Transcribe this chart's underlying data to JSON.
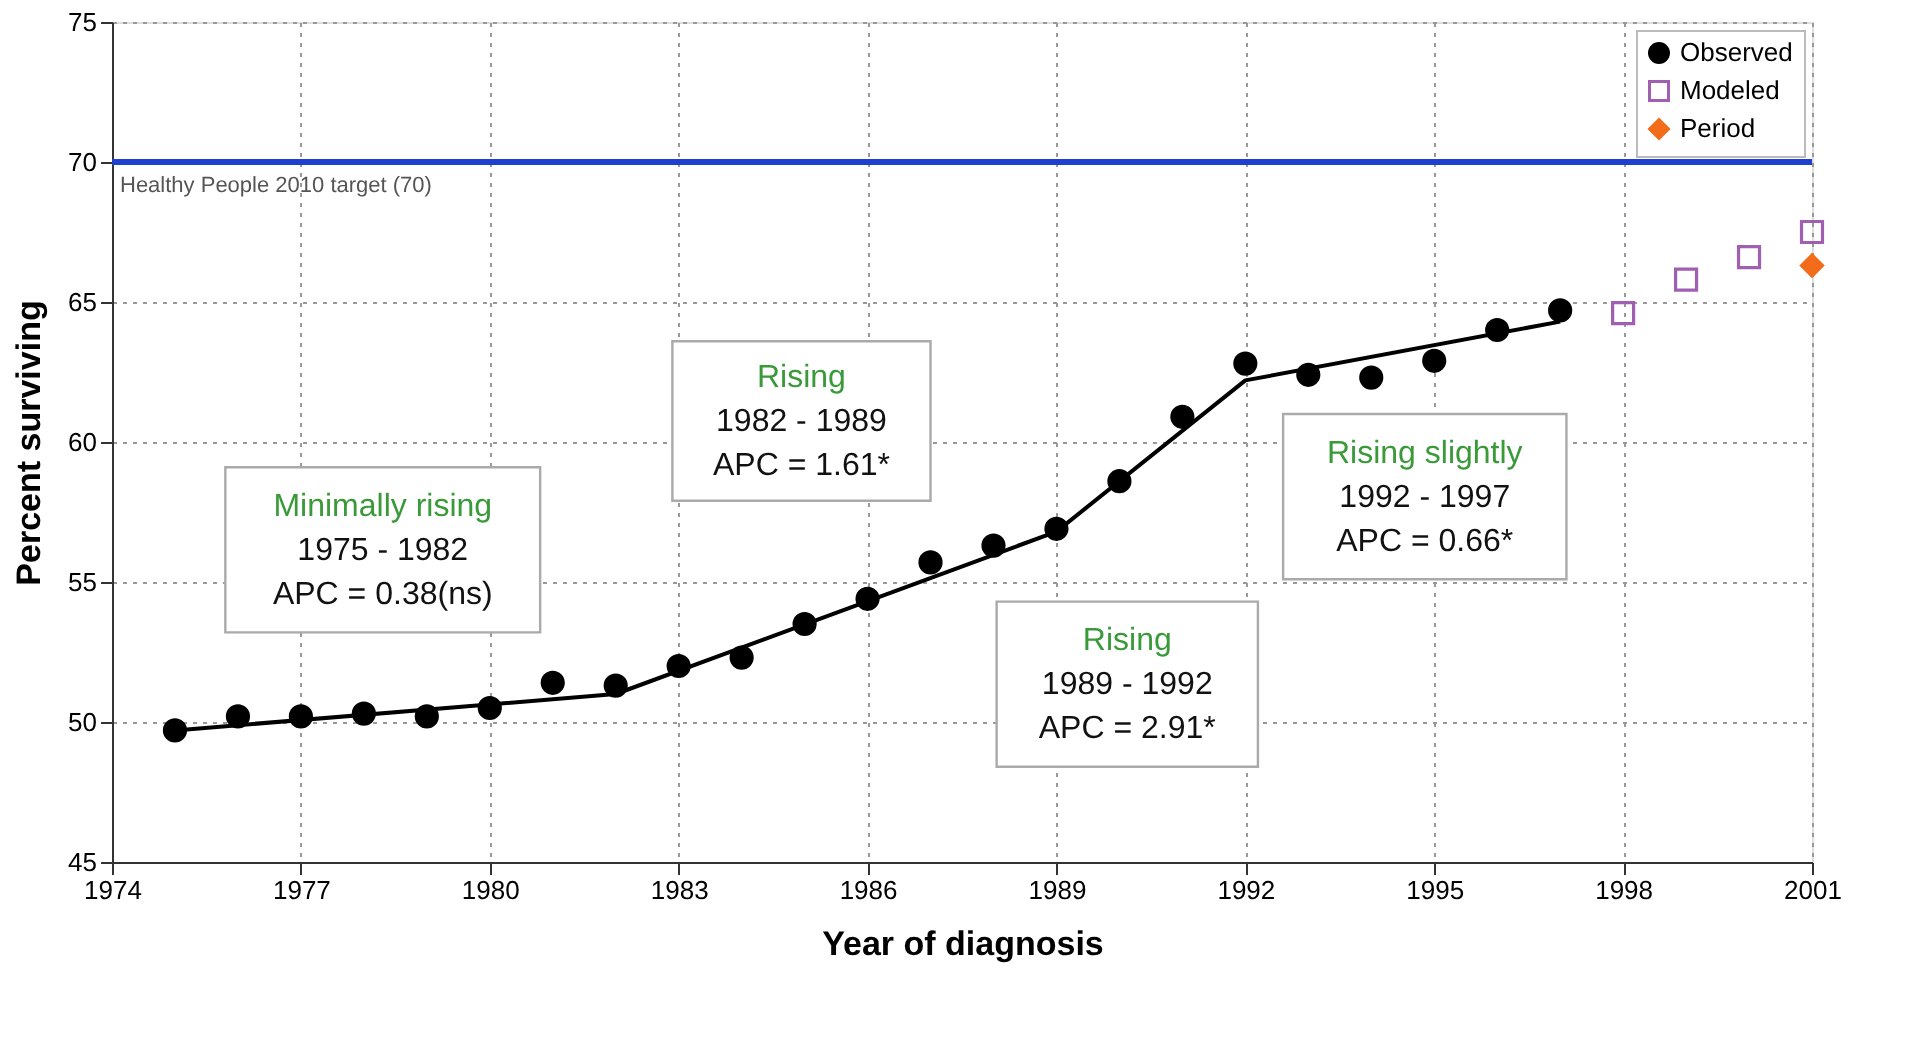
{
  "chart_data": {
    "type": "scatter",
    "xlabel": "Year of diagnosis",
    "ylabel": "Percent surviving",
    "xlim": [
      1974,
      2001
    ],
    "xticks": [
      1974,
      1977,
      1980,
      1983,
      1986,
      1989,
      1992,
      1995,
      1998,
      2001
    ],
    "ylim": [
      45,
      75
    ],
    "yticks": [
      45,
      50,
      55,
      60,
      65,
      70,
      75
    ],
    "grid": true,
    "legend": "top right",
    "series": [
      {
        "name": "Observed",
        "color": "#000000",
        "marker": "circle",
        "x": [
          1975,
          1976,
          1977,
          1978,
          1979,
          1980,
          1981,
          1982,
          1983,
          1984,
          1985,
          1986,
          1987,
          1988,
          1989,
          1990,
          1991,
          1992,
          1993,
          1994,
          1995,
          1996,
          1997
        ],
        "values": [
          49.7,
          50.2,
          50.2,
          50.3,
          50.2,
          50.5,
          51.4,
          51.3,
          52.0,
          52.3,
          53.5,
          54.4,
          55.7,
          56.3,
          56.9,
          58.6,
          60.9,
          62.8,
          62.4,
          62.3,
          62.9,
          64.0,
          64.7
        ]
      },
      {
        "name": "Modeled",
        "color": "#a05fb0",
        "marker": "square",
        "x": [
          1998,
          1999,
          2000,
          2001
        ],
        "values": [
          64.6,
          65.8,
          66.6,
          67.5
        ]
      },
      {
        "name": "Period",
        "color": "#f26c1a",
        "marker": "diamond",
        "x": [
          2001
        ],
        "values": [
          66.3
        ]
      },
      {
        "type": "line",
        "color": "#000000",
        "marker": "none",
        "x": [
          1975,
          1982,
          1989,
          1992,
          1997
        ],
        "values": [
          49.7,
          51.0,
          56.8,
          62.2,
          64.3
        ]
      }
    ],
    "ref_lines": [
      {
        "axis": "y",
        "value": 70,
        "label": "Healthy People 2010 target (70)",
        "color": "#1f3fd0"
      }
    ],
    "annotations": [
      "Minimally rising\n1975 - 1982\nAPC = 0.38(ns)",
      "Rising\n1982 - 1989\nAPC = 1.61*",
      "Rising\n1989 - 1992\nAPC = 2.91*",
      "Rising slightly\n1992 - 1997\nAPC = 0.66*"
    ]
  }
}
